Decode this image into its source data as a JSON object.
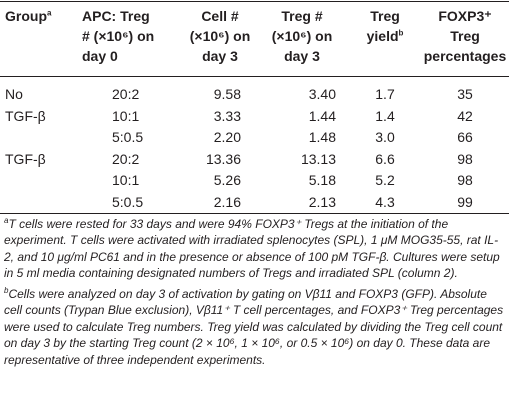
{
  "table": {
    "header": [
      {
        "lines": [
          "Group"
        ],
        "note": "a"
      },
      {
        "lines": [
          "APC: Treg",
          "# (×10⁶) on",
          "day 0"
        ]
      },
      {
        "lines": [
          "Cell #",
          "(×10⁶) on",
          "day 3"
        ]
      },
      {
        "lines": [
          "Treg #",
          "(×10⁶) on",
          "day 3"
        ]
      },
      {
        "lines": [
          "Treg",
          "yield"
        ],
        "note": "b"
      },
      {
        "lines": [
          "FOXP3⁺",
          "Treg",
          "percentages"
        ]
      }
    ],
    "rows": [
      [
        "No",
        "20:2",
        "9.58",
        "3.40",
        "1.7",
        "35"
      ],
      [
        "TGF-β",
        "10:1",
        "3.33",
        "1.44",
        "1.4",
        "42"
      ],
      [
        null,
        "5:0.5",
        "2.20",
        "1.48",
        "3.0",
        "66"
      ],
      [
        "TGF-β",
        "20:2",
        "13.36",
        "13.13",
        "6.6",
        "98"
      ],
      [
        null,
        "10:1",
        "5.26",
        "5.18",
        "5.2",
        "98"
      ],
      [
        null,
        "5:0.5",
        "2.16",
        "2.13",
        "4.3",
        "99"
      ]
    ]
  },
  "footnotes": [
    {
      "mark": "a",
      "text": "T cells were rested for 33 days and were 94% FOXP3⁺ Tregs at the initiation of the experiment. T cells were activated with irradiated splenocytes (SPL), 1 μM MOG35-55, rat IL-2, and 10 μg/ml PC61 and in the presence or absence of 100 pM TGF-β. Cultures were setup in 5 ml media containing designated numbers of Tregs and irradiated SPL (column 2)."
    },
    {
      "mark": "b",
      "text": "Cells were analyzed on day 3 of activation by gating on Vβ11 and FOXP3 (GFP). Absolute cell counts (Trypan Blue exclusion), Vβ11⁺ T cell percentages, and FOXP3⁺ Treg percentages were used to calculate Treg numbers. Treg yield was calculated by dividing the Treg cell count on day 3 by the starting Treg count (2 × 10⁶, 1 × 10⁶, or 0.5 × 10⁶) on day 0. These data are representative of three independent experiments."
    }
  ]
}
